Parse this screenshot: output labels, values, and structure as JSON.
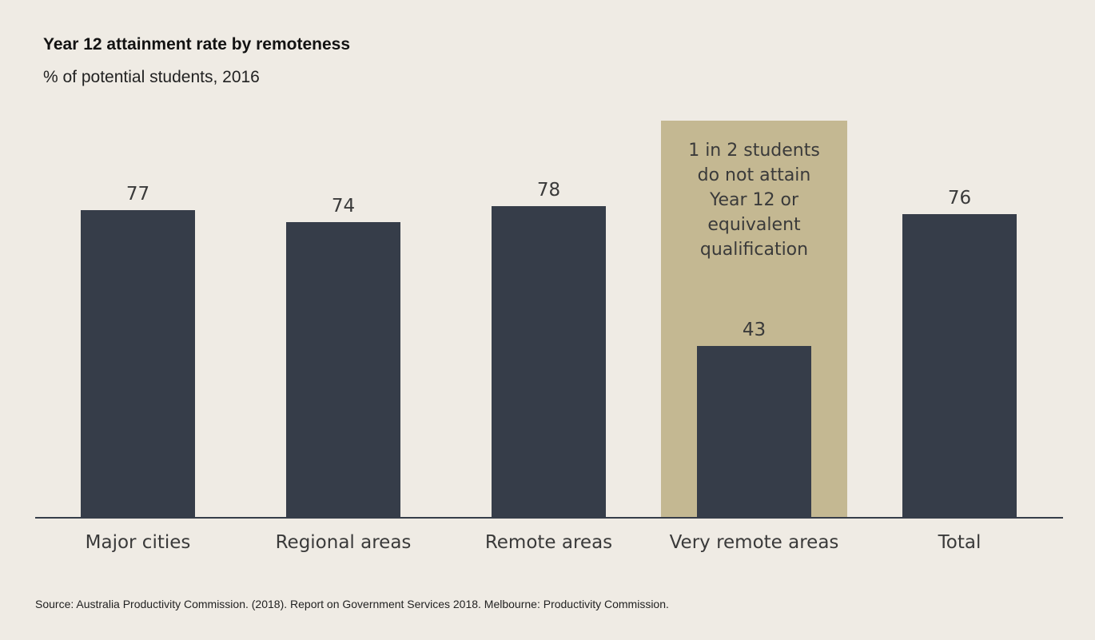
{
  "chart_data": {
    "type": "bar",
    "title": "Year 12 attainment rate by remoteness",
    "subtitle": "% of potential students, 2016",
    "categories": [
      "Major cities",
      "Regional areas",
      "Remote areas",
      "Very remote areas",
      "Total"
    ],
    "values": [
      77,
      74,
      78,
      43,
      76
    ],
    "value_labels": [
      "77",
      "74",
      "78",
      "43",
      "76"
    ],
    "ylim": [
      0,
      100
    ],
    "grid": false,
    "highlight": {
      "category": "Very remote areas",
      "color": "#c4b892",
      "annotation": [
        "1 in 2 students",
        "do not attain",
        "Year 12 or",
        "equivalent",
        "qualification"
      ]
    },
    "colors": {
      "bar": "#363d49",
      "background": "#efebe4",
      "axis": "#363d49"
    },
    "source": "Source: Australia Productivity Commission. (2018). Report on Government Services 2018. Melbourne: Productivity Commission."
  }
}
